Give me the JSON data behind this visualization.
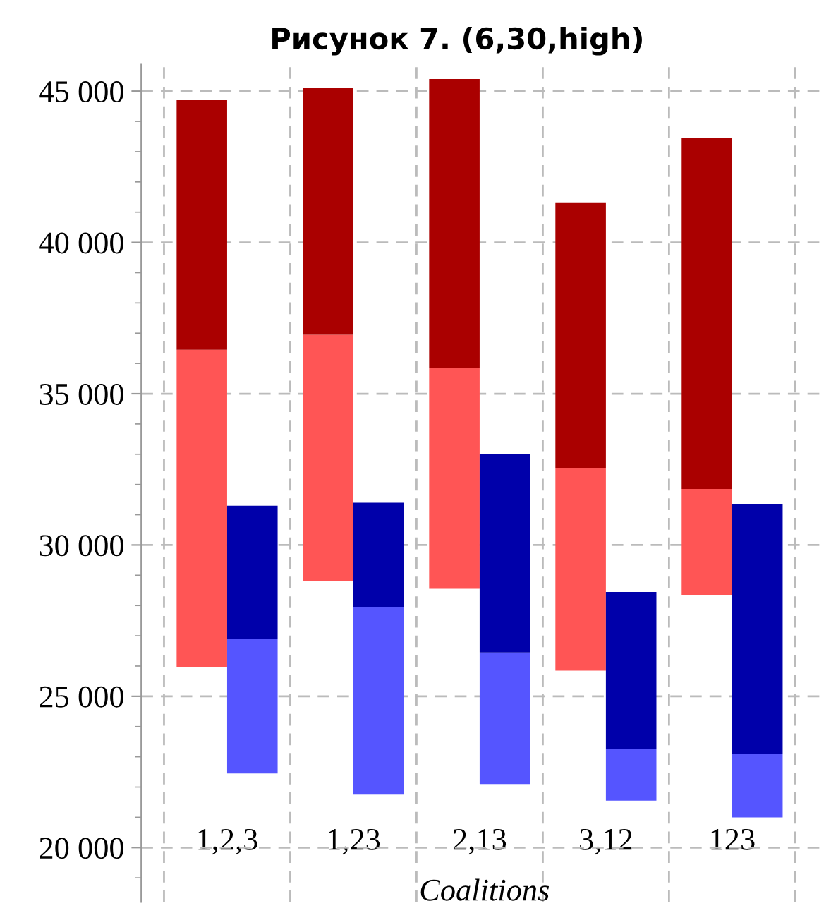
{
  "chart_data": {
    "type": "bar",
    "title": "Рисунок 7. (6,30,high)",
    "xlabel": "Coalitions",
    "categories": [
      "1,2,3",
      "1,23",
      "2,13",
      "3,12",
      "123"
    ],
    "series": [
      {
        "color": "#ff5555",
        "base": [
          25950,
          28800,
          28550,
          25850,
          28350
        ],
        "values": [
          10500,
          8150,
          7300,
          6700,
          3500
        ]
      },
      {
        "color": "#aa0000",
        "base": [
          36450,
          36950,
          35850,
          32550,
          31850
        ],
        "values": [
          8250,
          8150,
          9550,
          8750,
          11600
        ]
      },
      {
        "color": "#5555ff",
        "base": [
          22450,
          21750,
          22100,
          21550,
          21000
        ],
        "values": [
          4450,
          6200,
          4350,
          1700,
          2100
        ]
      },
      {
        "color": "#0000aa",
        "base": [
          26900,
          27950,
          26450,
          23250,
          23100
        ],
        "values": [
          4400,
          3450,
          6550,
          5200,
          8250
        ]
      }
    ],
    "ylim": [
      18200,
      45900
    ],
    "yticks": [
      {
        "value": 20000,
        "label": "20 000"
      },
      {
        "value": 25000,
        "label": "25 000"
      },
      {
        "value": 30000,
        "label": "30 000"
      },
      {
        "value": 35000,
        "label": "35 000"
      },
      {
        "value": 40000,
        "label": "40 000"
      },
      {
        "value": 45000,
        "label": "45 000"
      }
    ],
    "grid": true
  }
}
